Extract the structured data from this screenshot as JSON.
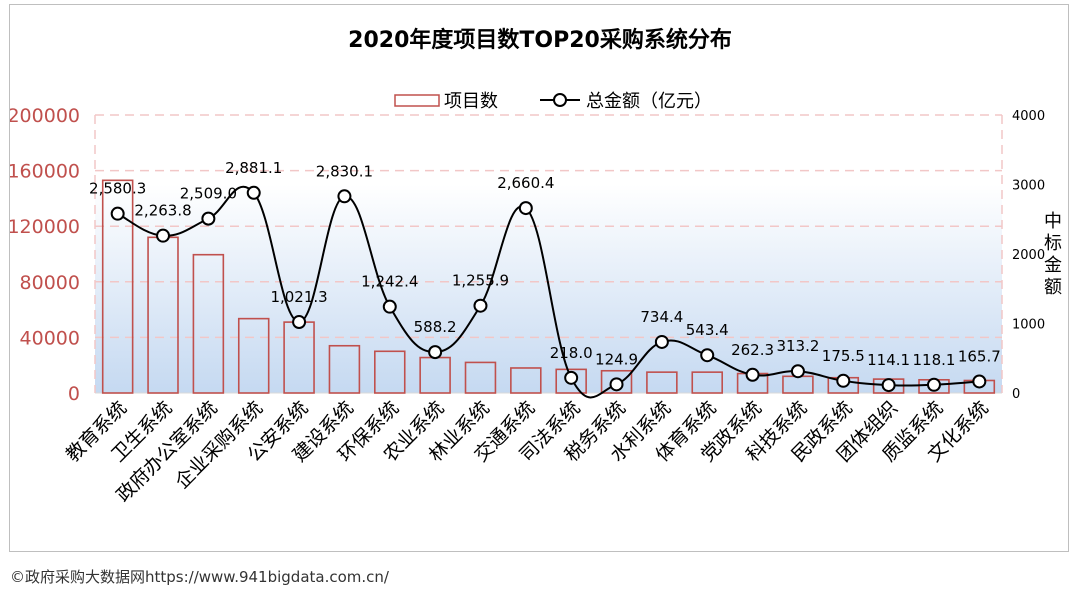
{
  "chart_data": {
    "type": "bar+line",
    "title": "2020年度项目数TOP20采购系统分布",
    "categories": [
      "教育系统",
      "卫生系统",
      "政府办公室系统",
      "企业采购系统",
      "公安系统",
      "建设系统",
      "环保系统",
      "农业系统",
      "林业系统",
      "交通系统",
      "司法系统",
      "税务系统",
      "水利系统",
      "体育系统",
      "党政系统",
      "科技系统",
      "民政系统",
      "团体组织",
      "质监系统",
      "文化系统"
    ],
    "series": [
      {
        "name": "项目数",
        "type": "bar",
        "axis": "left",
        "values": [
          153000,
          112000,
          99500,
          53500,
          51000,
          34000,
          30000,
          25500,
          22000,
          18000,
          17000,
          16000,
          15000,
          15000,
          14000,
          12000,
          11000,
          10000,
          9500,
          9000
        ]
      },
      {
        "name": "总金额（亿元）",
        "type": "line",
        "axis": "right",
        "values": [
          2580.3,
          2263.8,
          2509.0,
          2881.1,
          1021.3,
          2830.1,
          1242.4,
          588.2,
          1255.9,
          2660.4,
          218.0,
          124.9,
          734.4,
          543.4,
          262.3,
          313.2,
          175.5,
          114.1,
          118.1,
          165.7
        ],
        "labels": [
          "2,580.3",
          "2,263.8",
          "2,509.0",
          "2,881.1",
          "1,021.3",
          "2,830.1",
          "1,242.4",
          "588.2",
          "1,255.9",
          "2,660.4",
          "218.0",
          "124.9",
          "734.4",
          "543.4",
          "262.3",
          "313.2",
          "175.5",
          "114.1",
          "118.1",
          "165.7"
        ]
      }
    ],
    "y_left": {
      "ylim": [
        0,
        200000
      ],
      "ticks": [
        "0",
        "40000",
        "80000",
        "120000",
        "160000",
        "200000"
      ]
    },
    "y_right": {
      "ylim": [
        0,
        4000
      ],
      "ticks": [
        "0",
        "1000",
        "2000",
        "3000",
        "4000"
      ],
      "label": "中标金额"
    },
    "legend": "top-center",
    "grid": "dashed horizontal",
    "colors": {
      "bar_edge": "#c0504d",
      "line": "#000000",
      "left_axis_text": "#c0504d",
      "grid": "#f2c7c7",
      "background_top": "#ffffff",
      "background_bottom": "#c5d9f1"
    }
  },
  "footer": {
    "source": "©政府采购大数据网https://www.941bigdata.com.cn/"
  }
}
